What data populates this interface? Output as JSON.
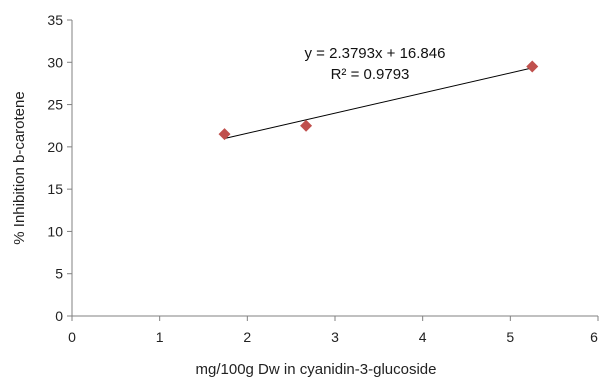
{
  "chart_data": {
    "type": "scatter",
    "title": "",
    "xlabel": "mg/100g Dw in cyanidin-3-glucoside",
    "ylabel": "% Inhibition b-carotene",
    "xlim": [
      0,
      6
    ],
    "ylim": [
      0,
      35
    ],
    "x_ticks": [
      "0",
      "1",
      "2",
      "3",
      "4",
      "5",
      "6"
    ],
    "y_ticks": [
      "0",
      "5",
      "10",
      "15",
      "20",
      "25",
      "30",
      "35"
    ],
    "grid": false,
    "legend": "none",
    "marker": "diamond",
    "marker_color": "#C0504D",
    "series": [
      {
        "points": [
          {
            "x": 1.74,
            "y": 21.5
          },
          {
            "x": 2.67,
            "y": 22.5
          },
          {
            "x": 5.25,
            "y": 29.5
          }
        ]
      }
    ],
    "trendline": {
      "slope": 2.3793,
      "intercept": 16.846,
      "x_range": [
        1.74,
        5.25
      ],
      "equation": "y = 2.3793x + 16.846",
      "r_squared": "R² = 0.9793",
      "color": "#000000"
    }
  }
}
